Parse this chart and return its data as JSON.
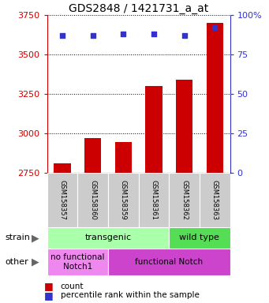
{
  "title": "GDS2848 / 1421731_a_at",
  "samples": [
    "GSM158357",
    "GSM158360",
    "GSM158359",
    "GSM158361",
    "GSM158362",
    "GSM158363"
  ],
  "counts": [
    2808,
    2970,
    2945,
    3300,
    3340,
    3700
  ],
  "percentile_ranks": [
    87,
    87,
    88,
    88,
    87,
    92
  ],
  "ylim_left": [
    2750,
    3750
  ],
  "ylim_right": [
    0,
    100
  ],
  "yticks_left": [
    2750,
    3000,
    3250,
    3500,
    3750
  ],
  "yticks_right": [
    0,
    25,
    50,
    75,
    100
  ],
  "bar_color": "#cc0000",
  "dot_color": "#3333cc",
  "strain_groups": [
    {
      "label": "transgenic",
      "span": [
        0,
        4
      ],
      "color": "#aaffaa"
    },
    {
      "label": "wild type",
      "span": [
        4,
        6
      ],
      "color": "#55dd55"
    }
  ],
  "other_groups": [
    {
      "label": "no functional\nNotch1",
      "span": [
        0,
        2
      ],
      "color": "#ee88ee"
    },
    {
      "label": "functional Notch",
      "span": [
        2,
        6
      ],
      "color": "#cc44cc"
    }
  ],
  "left_axis_color": "#cc0000",
  "right_axis_color": "#3333cc",
  "tick_label_fontsize": 8,
  "bar_width": 0.55,
  "base_value": 2750,
  "sample_label_fontsize": 6,
  "label_bg_color": "#cccccc",
  "title_fontsize": 10
}
